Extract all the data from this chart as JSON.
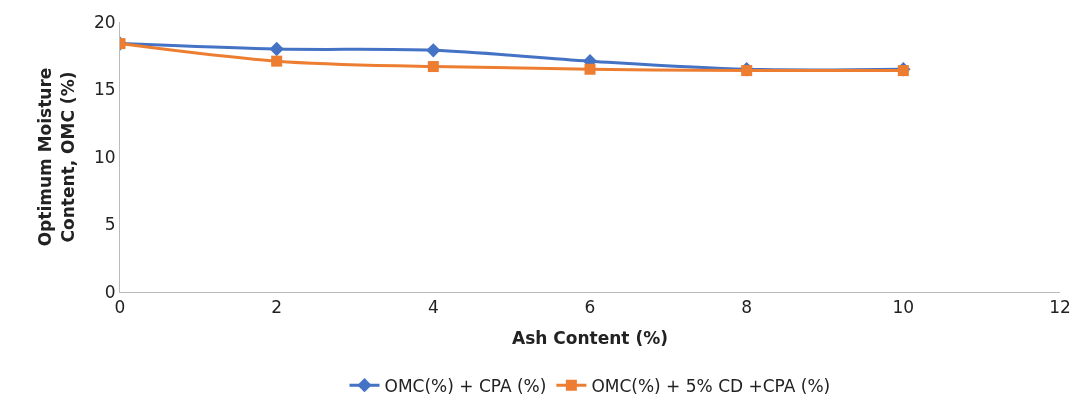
{
  "chart_data": {
    "type": "line",
    "xlabel": "Ash Content (%)",
    "ylabel": "Optimum Moisture\nContent, OMC (%)",
    "x": [
      0,
      2,
      4,
      6,
      8,
      10
    ],
    "series": [
      {
        "name": "OMC(%) + CPA (%)",
        "color": "#4472c4",
        "marker": "diamond",
        "values": [
          18.4,
          18.0,
          17.9,
          17.1,
          16.5,
          16.5
        ]
      },
      {
        "name": "OMC(%) + 5% CD +CPA (%)",
        "color": "#ed7d31",
        "marker": "square",
        "values": [
          18.4,
          17.1,
          16.7,
          16.5,
          16.4,
          16.4
        ]
      }
    ],
    "xlim": [
      0,
      12
    ],
    "xticks": [
      0,
      2,
      4,
      6,
      8,
      10,
      12
    ],
    "ylim": [
      0,
      20
    ],
    "yticks": [
      0,
      5,
      10,
      15,
      20
    ],
    "legend": "bottom",
    "line_style": "solid"
  }
}
